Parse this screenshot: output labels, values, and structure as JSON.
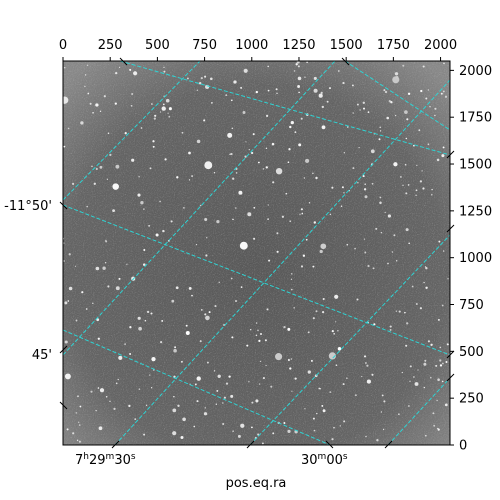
{
  "figure": {
    "colors": {
      "background": "#ffffff",
      "sky": "#6b6b6b",
      "grid": "#2fd3d3",
      "frame": "#000000"
    },
    "xlabel_bottom": "pos.eq.ra",
    "ra_labels": [
      {
        "h": "7",
        "m": "29",
        "s": "30",
        "hour_unit": "h",
        "min_unit": "m",
        "sec_unit": "s"
      },
      {
        "m": "30",
        "s": "00",
        "min_unit": "m",
        "sec_unit": "s"
      }
    ],
    "dec_labels": [
      "-11°50'",
      "45'"
    ],
    "pixel_axis": {
      "x_ticks": [
        "0",
        "250",
        "500",
        "750",
        "1000",
        "1250",
        "1500",
        "1750",
        "2000"
      ],
      "y_ticks": [
        "0",
        "250",
        "500",
        "750",
        "1000",
        "1250",
        "1500",
        "1750",
        "2000"
      ],
      "xlim": [
        0,
        2050
      ],
      "ylim": [
        0,
        2050
      ]
    }
  }
}
